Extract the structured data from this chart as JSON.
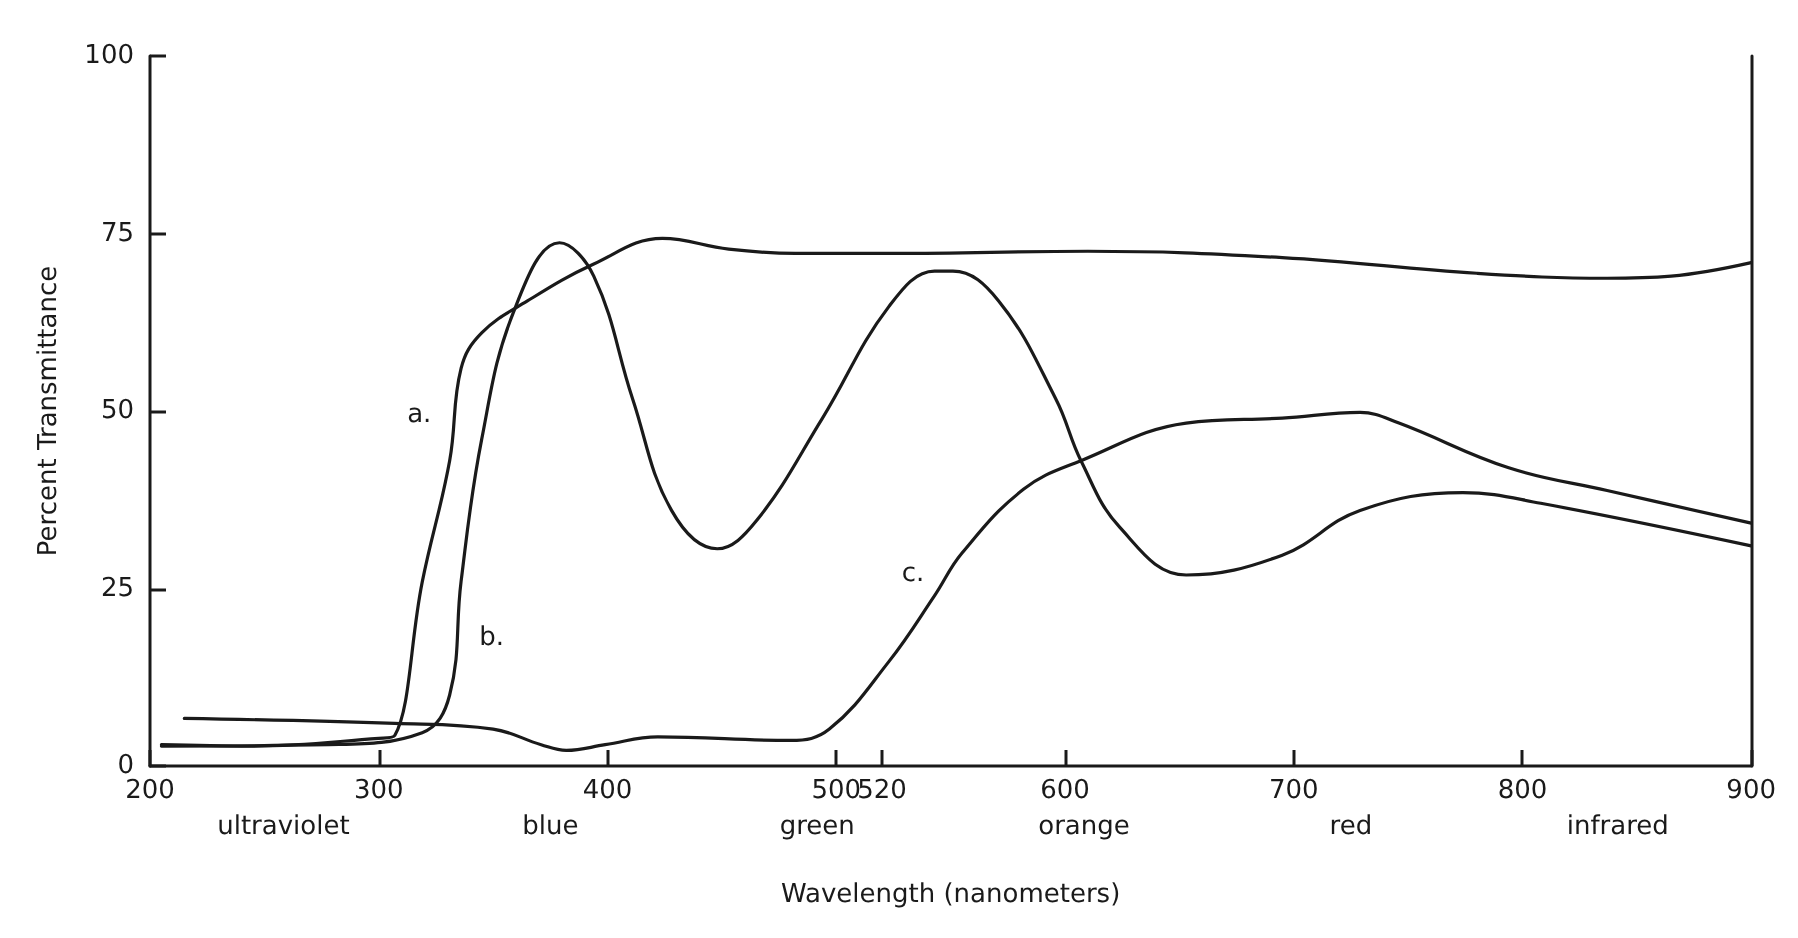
{
  "chart_data": {
    "type": "line",
    "xlabel": "Wavelength (nanometers)",
    "ylabel": "Percent Transmittance",
    "xlim": [
      200,
      900
    ],
    "xticks": [
      200,
      300,
      400,
      500,
      520,
      600,
      700,
      800,
      900
    ],
    "ylim": [
      0,
      100
    ],
    "yticks": [
      0,
      25,
      50,
      75,
      100
    ],
    "grid": false,
    "marker": "none",
    "line_style": "solid",
    "series": [
      {
        "name": "a.",
        "color": "#1a1a1a",
        "x": [
          205,
          244,
          300,
          307,
          319,
          331,
          336,
          345,
          365,
          394,
          424,
          453,
          482,
          525,
          610,
          695,
          780,
          837,
          865,
          900
        ],
        "values": [
          3,
          2.8,
          3.9,
          4.3,
          25.9,
          43,
          56,
          61,
          65.5,
          70.7,
          74.3,
          72.8,
          72.2,
          72.2,
          72.5,
          71.6,
          69.4,
          68.7,
          69,
          70.9
        ]
      },
      {
        "name": "b.",
        "color": "#1a1a1a",
        "x": [
          205,
          278,
          319,
          331,
          336,
          345,
          359,
          379,
          394,
          411,
          428,
          448,
          465,
          494,
          523,
          543,
          551,
          571,
          596,
          607,
          624,
          653,
          695,
          729,
          774,
          808,
          900
        ],
        "values": [
          2.8,
          3,
          4.7,
          10,
          26,
          46,
          64,
          73.7,
          69,
          51.7,
          36,
          30.6,
          34.5,
          49,
          64.7,
          69.7,
          69.7,
          65.5,
          51.7,
          43,
          33.6,
          26.9,
          29.7,
          36,
          38.5,
          37,
          31
        ]
      },
      {
        "name": "c.",
        "color": "#1a1a1a",
        "x": [
          215,
          307,
          350,
          371,
          382,
          399,
          422,
          480,
          497,
          523,
          543,
          555,
          582,
          607,
          653,
          695,
          729,
          746,
          794,
          837,
          900
        ],
        "values": [
          6.7,
          6,
          5.2,
          3,
          2.2,
          3,
          4.1,
          3.6,
          5.2,
          14.7,
          24,
          30,
          39,
          43,
          48.3,
          49,
          49.8,
          48.3,
          42,
          38.8,
          34.2
        ]
      }
    ],
    "annotations": [
      "ultraviolet",
      "blue",
      "green",
      "orange",
      "red",
      "infrared"
    ]
  }
}
